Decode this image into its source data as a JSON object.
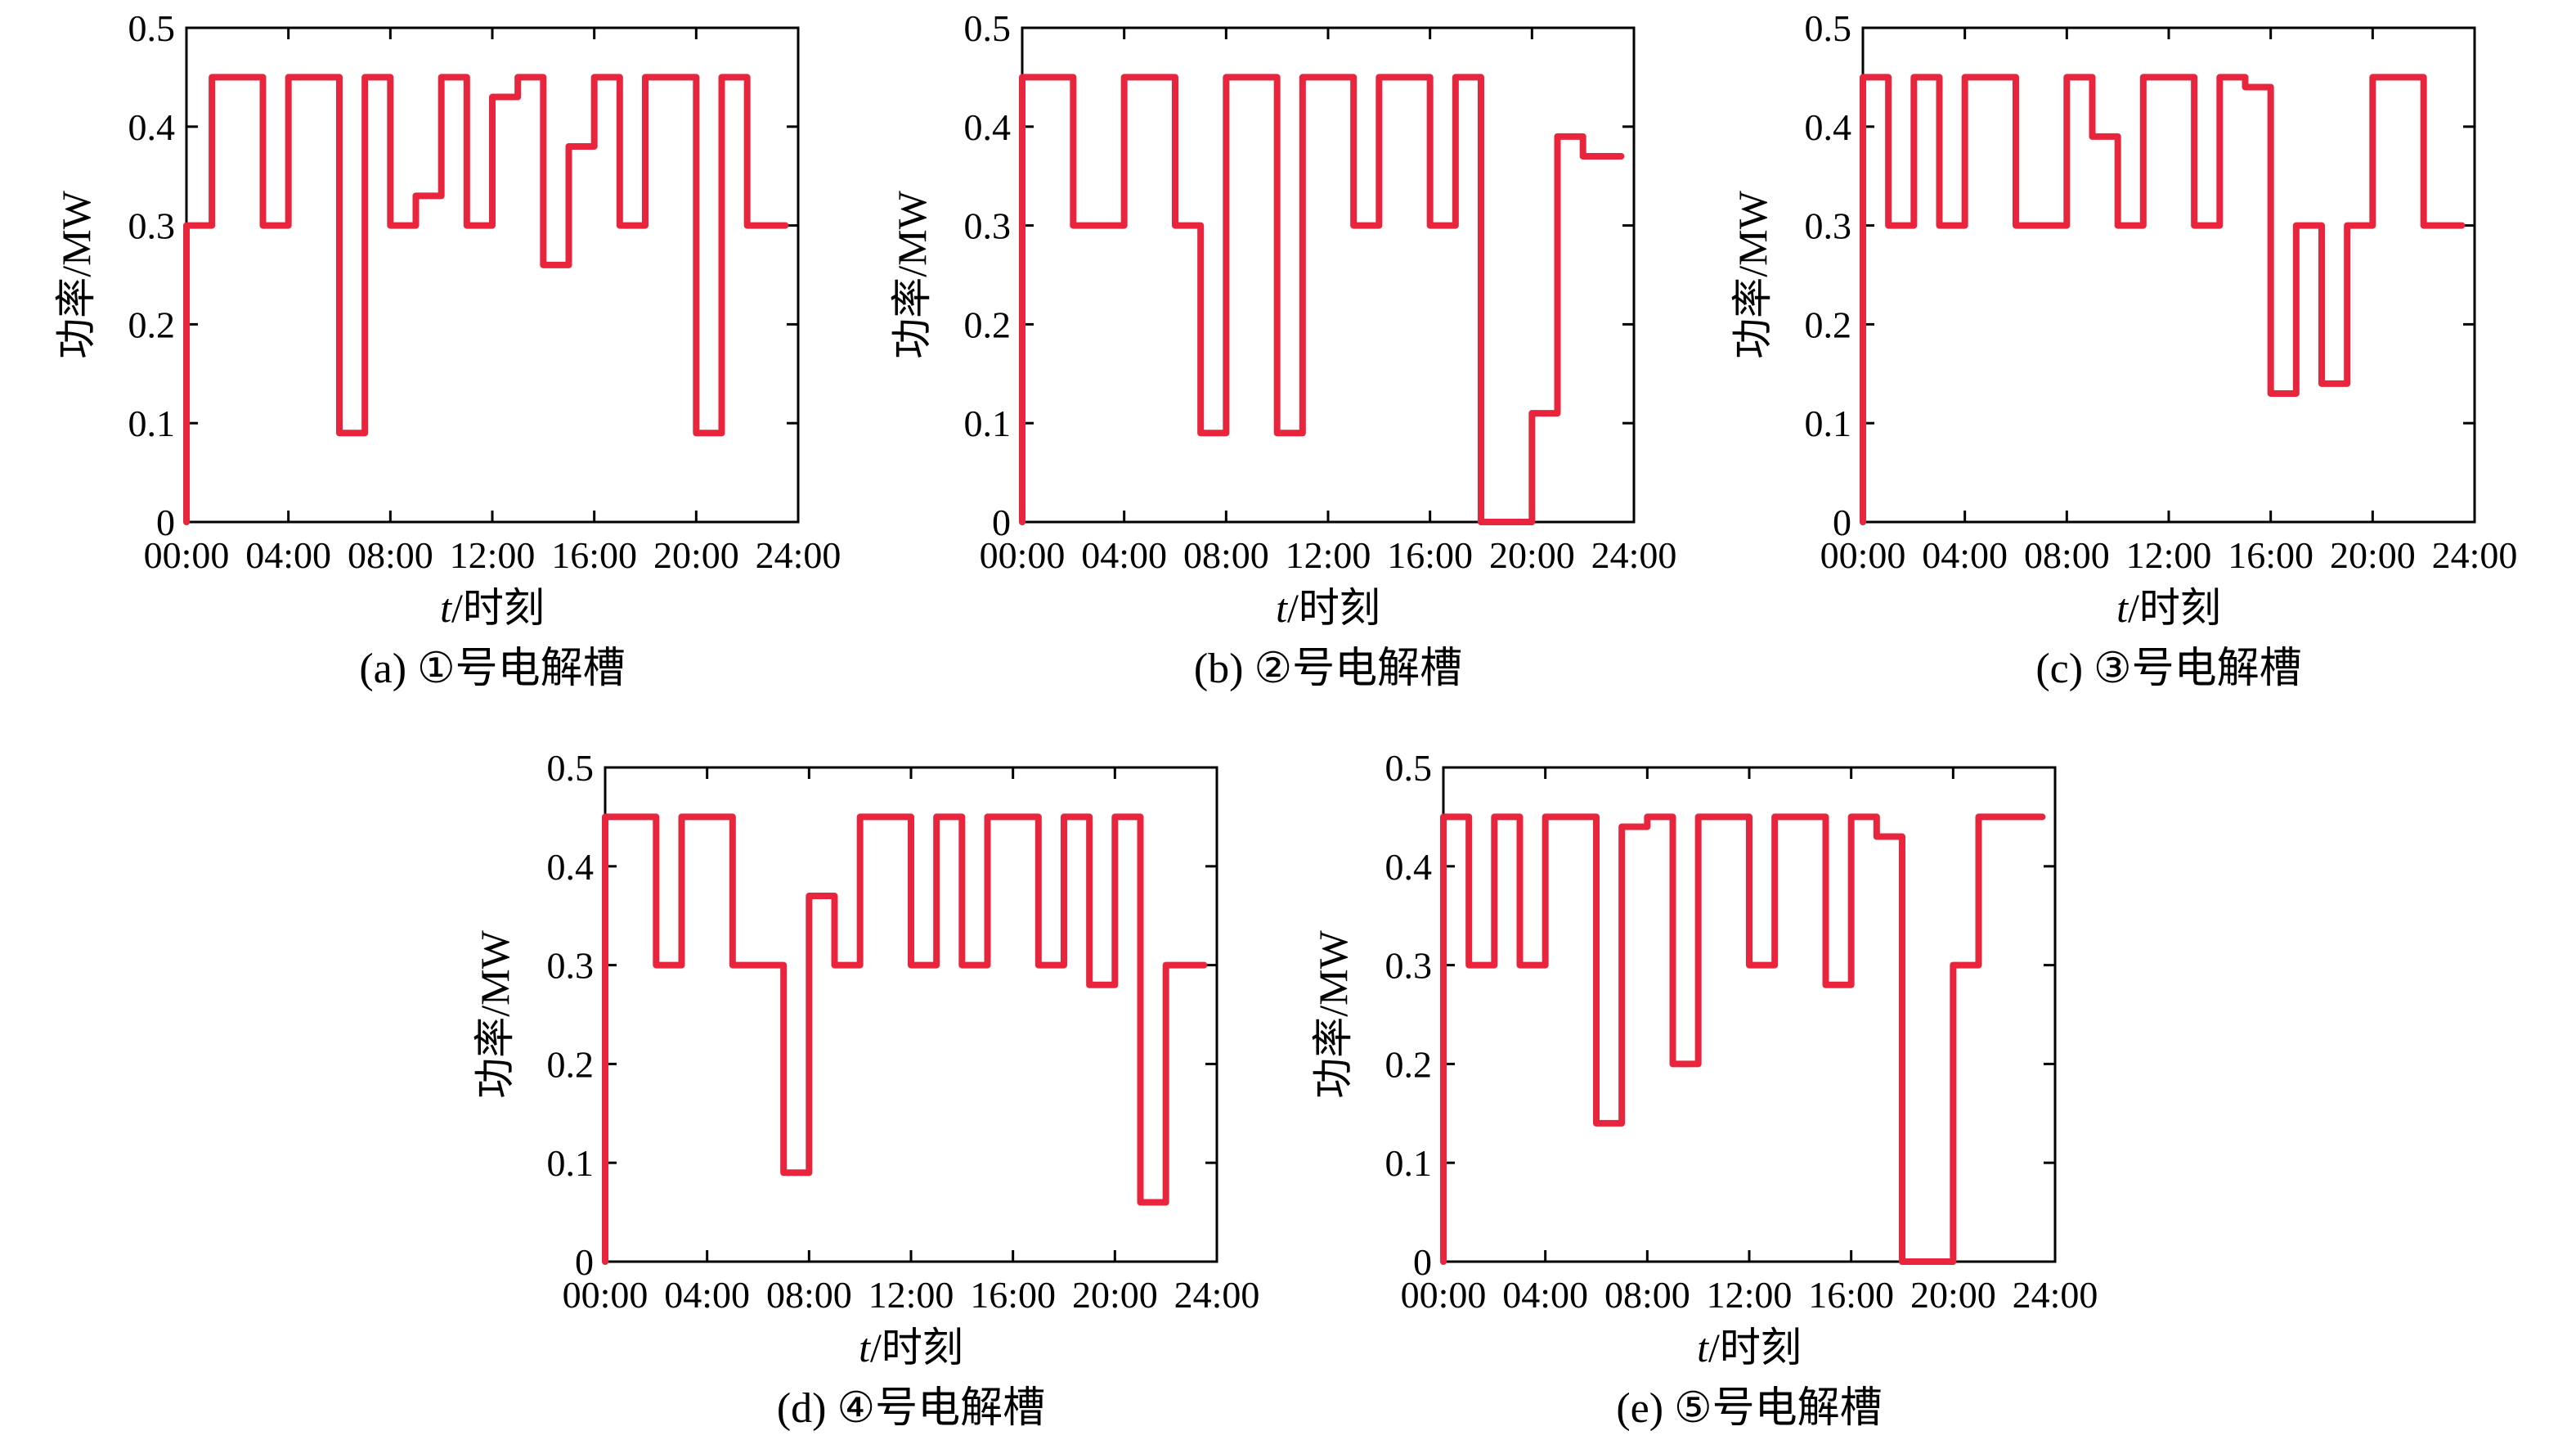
{
  "chart_data": [
    {
      "type": "line",
      "caption": "(a) ①号电解槽",
      "xlabel_italic": "t",
      "xlabel_rest": "/时刻",
      "ylabel": "功率/MW",
      "xlim": [
        0,
        24
      ],
      "ylim": [
        0,
        0.5
      ],
      "xticks": [
        0,
        4,
        8,
        12,
        16,
        20,
        24
      ],
      "xtick_labels": [
        "00:00",
        "04:00",
        "08:00",
        "12:00",
        "16:00",
        "20:00",
        "24:00"
      ],
      "yticks": [
        0,
        0.1,
        0.2,
        0.3,
        0.4,
        0.5
      ],
      "ytick_labels": [
        "0",
        "0.1",
        "0.2",
        "0.3",
        "0.4",
        "0.5"
      ],
      "series": [
        {
          "color": "#e8253c",
          "step": "post",
          "x": [
            0,
            1,
            2,
            3,
            4,
            5,
            6,
            7,
            8,
            9,
            10,
            11,
            12,
            13,
            14,
            15,
            16,
            17,
            18,
            19,
            20,
            21,
            22,
            23
          ],
          "y": [
            0.3,
            0.45,
            0.45,
            0.3,
            0.45,
            0.45,
            0.09,
            0.45,
            0.3,
            0.33,
            0.45,
            0.3,
            0.43,
            0.45,
            0.26,
            0.38,
            0.45,
            0.3,
            0.45,
            0.45,
            0.09,
            0.45,
            0.3,
            0.3
          ]
        }
      ]
    },
    {
      "type": "line",
      "caption": "(b) ②号电解槽",
      "xlabel_italic": "t",
      "xlabel_rest": "/时刻",
      "ylabel": "功率/MW",
      "xlim": [
        0,
        24
      ],
      "ylim": [
        0,
        0.5
      ],
      "xticks": [
        0,
        4,
        8,
        12,
        16,
        20,
        24
      ],
      "xtick_labels": [
        "00:00",
        "04:00",
        "08:00",
        "12:00",
        "16:00",
        "20:00",
        "24:00"
      ],
      "yticks": [
        0,
        0.1,
        0.2,
        0.3,
        0.4,
        0.5
      ],
      "ytick_labels": [
        "0",
        "0.1",
        "0.2",
        "0.3",
        "0.4",
        "0.5"
      ],
      "series": [
        {
          "color": "#e8253c",
          "step": "post",
          "x": [
            0,
            1,
            2,
            3,
            4,
            5,
            6,
            7,
            8,
            9,
            10,
            11,
            12,
            13,
            14,
            15,
            16,
            17,
            18,
            19,
            20,
            21,
            22,
            23
          ],
          "y": [
            0.45,
            0.45,
            0.3,
            0.3,
            0.45,
            0.45,
            0.3,
            0.09,
            0.45,
            0.45,
            0.09,
            0.45,
            0.45,
            0.3,
            0.45,
            0.45,
            0.3,
            0.45,
            0.0,
            0.0,
            0.11,
            0.39,
            0.37,
            0.37
          ]
        }
      ]
    },
    {
      "type": "line",
      "caption": "(c) ③号电解槽",
      "xlabel_italic": "t",
      "xlabel_rest": "/时刻",
      "ylabel": "功率/MW",
      "xlim": [
        0,
        24
      ],
      "ylim": [
        0,
        0.5
      ],
      "xticks": [
        0,
        4,
        8,
        12,
        16,
        20,
        24
      ],
      "xtick_labels": [
        "00:00",
        "04:00",
        "08:00",
        "12:00",
        "16:00",
        "20:00",
        "24:00"
      ],
      "yticks": [
        0,
        0.1,
        0.2,
        0.3,
        0.4,
        0.5
      ],
      "ytick_labels": [
        "0",
        "0.1",
        "0.2",
        "0.3",
        "0.4",
        "0.5"
      ],
      "series": [
        {
          "color": "#e8253c",
          "step": "post",
          "x": [
            0,
            1,
            2,
            3,
            4,
            5,
            6,
            7,
            8,
            9,
            10,
            11,
            12,
            13,
            14,
            15,
            16,
            17,
            18,
            19,
            20,
            21,
            22,
            23
          ],
          "y": [
            0.45,
            0.3,
            0.45,
            0.3,
            0.45,
            0.45,
            0.3,
            0.3,
            0.45,
            0.39,
            0.3,
            0.45,
            0.45,
            0.3,
            0.45,
            0.44,
            0.13,
            0.3,
            0.14,
            0.3,
            0.45,
            0.45,
            0.3,
            0.3
          ]
        }
      ]
    },
    {
      "type": "line",
      "caption": "(d) ④号电解槽",
      "xlabel_italic": "t",
      "xlabel_rest": "/时刻",
      "ylabel": "功率/MW",
      "xlim": [
        0,
        24
      ],
      "ylim": [
        0,
        0.5
      ],
      "xticks": [
        0,
        4,
        8,
        12,
        16,
        20,
        24
      ],
      "xtick_labels": [
        "00:00",
        "04:00",
        "08:00",
        "12:00",
        "16:00",
        "20:00",
        "24:00"
      ],
      "yticks": [
        0,
        0.1,
        0.2,
        0.3,
        0.4,
        0.5
      ],
      "ytick_labels": [
        "0",
        "0.1",
        "0.2",
        "0.3",
        "0.4",
        "0.5"
      ],
      "series": [
        {
          "color": "#e8253c",
          "step": "post",
          "x": [
            0,
            1,
            2,
            3,
            4,
            5,
            6,
            7,
            8,
            9,
            10,
            11,
            12,
            13,
            14,
            15,
            16,
            17,
            18,
            19,
            20,
            21,
            22,
            23
          ],
          "y": [
            0.45,
            0.45,
            0.3,
            0.45,
            0.45,
            0.3,
            0.3,
            0.09,
            0.37,
            0.3,
            0.45,
            0.45,
            0.3,
            0.45,
            0.3,
            0.45,
            0.45,
            0.3,
            0.45,
            0.28,
            0.45,
            0.06,
            0.3,
            0.3
          ]
        }
      ]
    },
    {
      "type": "line",
      "caption": "(e) ⑤号电解槽",
      "xlabel_italic": "t",
      "xlabel_rest": "/时刻",
      "ylabel": "功率/MW",
      "xlim": [
        0,
        24
      ],
      "ylim": [
        0,
        0.5
      ],
      "xticks": [
        0,
        4,
        8,
        12,
        16,
        20,
        24
      ],
      "xtick_labels": [
        "00:00",
        "04:00",
        "08:00",
        "12:00",
        "16:00",
        "20:00",
        "24:00"
      ],
      "yticks": [
        0,
        0.1,
        0.2,
        0.3,
        0.4,
        0.5
      ],
      "ytick_labels": [
        "0",
        "0.1",
        "0.2",
        "0.3",
        "0.4",
        "0.5"
      ],
      "series": [
        {
          "color": "#e8253c",
          "step": "post",
          "x": [
            0,
            1,
            2,
            3,
            4,
            5,
            6,
            7,
            8,
            9,
            10,
            11,
            12,
            13,
            14,
            15,
            16,
            17,
            18,
            19,
            20,
            21,
            22,
            23
          ],
          "y": [
            0.45,
            0.3,
            0.45,
            0.3,
            0.45,
            0.45,
            0.14,
            0.44,
            0.45,
            0.2,
            0.45,
            0.45,
            0.3,
            0.45,
            0.45,
            0.28,
            0.45,
            0.43,
            0.0,
            0.0,
            0.3,
            0.45,
            0.45,
            0.45
          ]
        }
      ]
    }
  ]
}
